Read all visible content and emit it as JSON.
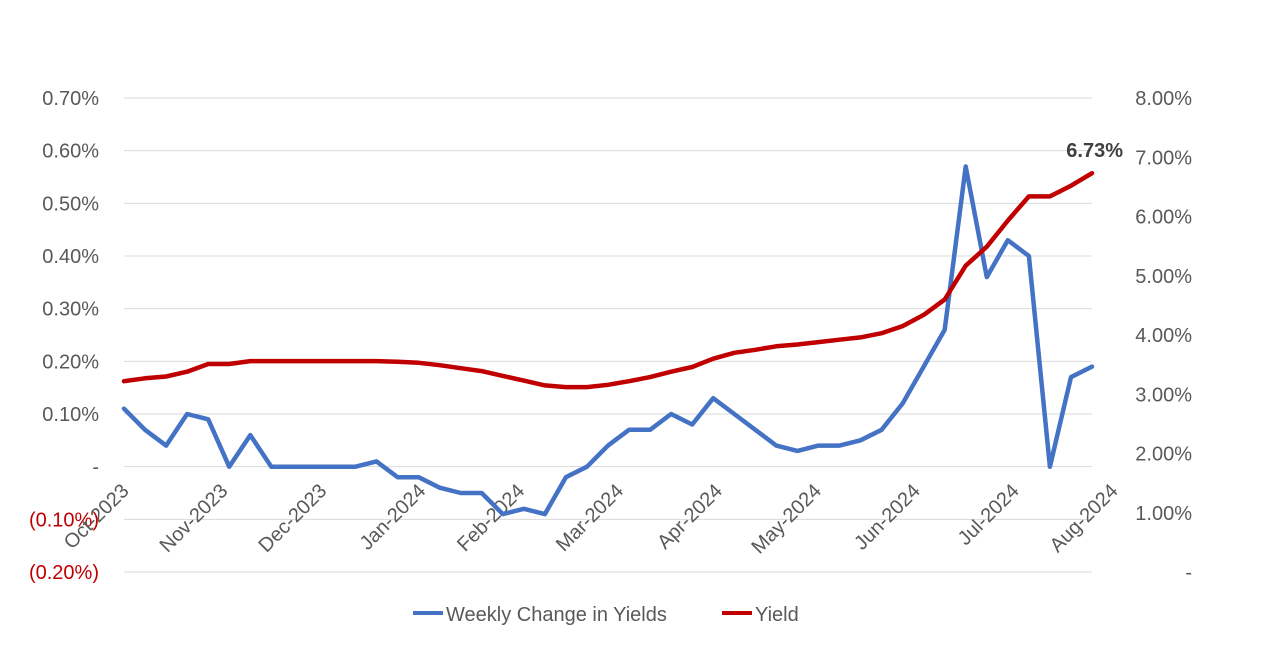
{
  "chart_data": {
    "type": "line",
    "title": "",
    "xlabel": "",
    "ylabel": "",
    "x_tick_labels": [
      "Oct-2023",
      "Nov-2023",
      "Dec-2023",
      "Jan-2024",
      "Feb-2024",
      "Mar-2024",
      "Apr-2024",
      "May-2024",
      "Jun-2024",
      "Jul-2024",
      "Aug-2024"
    ],
    "left_axis": {
      "range": [
        -0.002,
        0.007
      ],
      "ticks": [
        0.007,
        0.006,
        0.005,
        0.004,
        0.003,
        0.002,
        0.001,
        0,
        -0.001,
        -0.002
      ],
      "tick_labels": [
        "0.70%",
        "0.60%",
        "0.50%",
        "0.40%",
        "0.30%",
        "0.20%",
        "0.10%",
        "-",
        "(0.10%)",
        "(0.20%)"
      ],
      "negative_label_color": "#c00000"
    },
    "right_axis": {
      "range": [
        0,
        0.08
      ],
      "ticks": [
        0.08,
        0.07,
        0.06,
        0.05,
        0.04,
        0.03,
        0.02,
        0.01,
        0
      ],
      "tick_labels": [
        "8.00%",
        "7.00%",
        "6.00%",
        "5.00%",
        "4.00%",
        "3.00%",
        "2.00%",
        "1.00%",
        "-"
      ]
    },
    "grid": true,
    "legend_position": "bottom",
    "series": [
      {
        "name": "Weekly Change in Yields",
        "axis": "left",
        "color": "#4472c4",
        "values": [
          0.0011,
          0.0007,
          0.0004,
          0.001,
          0.0009,
          0.0,
          0.0006,
          0.0,
          0.0,
          0.0,
          0.0,
          0.0,
          0.0001,
          -0.0002,
          -0.0002,
          -0.0004,
          -0.0005,
          -0.0005,
          -0.0009,
          -0.0008,
          -0.0009,
          -0.0002,
          0.0,
          0.0004,
          0.0007,
          0.0007,
          0.001,
          0.0008,
          0.0013,
          0.001,
          0.0007,
          0.0004,
          0.0003,
          0.0004,
          0.0004,
          0.0005,
          0.0007,
          0.0012,
          0.0019,
          0.0026,
          0.0057,
          0.0036,
          0.0043,
          0.004,
          0.0,
          0.0017,
          0.0019
        ]
      },
      {
        "name": "Yield",
        "axis": "right",
        "color": "#c00000",
        "values": [
          0.0322,
          0.0327,
          0.033,
          0.0338,
          0.0351,
          0.0351,
          0.0356,
          0.0356,
          0.0356,
          0.0356,
          0.0356,
          0.0356,
          0.0356,
          0.0355,
          0.0353,
          0.0349,
          0.0344,
          0.0339,
          0.0331,
          0.0323,
          0.0315,
          0.0312,
          0.0312,
          0.0316,
          0.0322,
          0.0329,
          0.0338,
          0.0346,
          0.036,
          0.037,
          0.0375,
          0.0381,
          0.0384,
          0.0388,
          0.0392,
          0.0396,
          0.0403,
          0.0415,
          0.0434,
          0.046,
          0.0517,
          0.0549,
          0.0593,
          0.0634,
          0.0634,
          0.0652,
          0.0673
        ]
      }
    ],
    "annotation": {
      "text": "6.73%",
      "series": "Yield",
      "point": "last"
    }
  }
}
